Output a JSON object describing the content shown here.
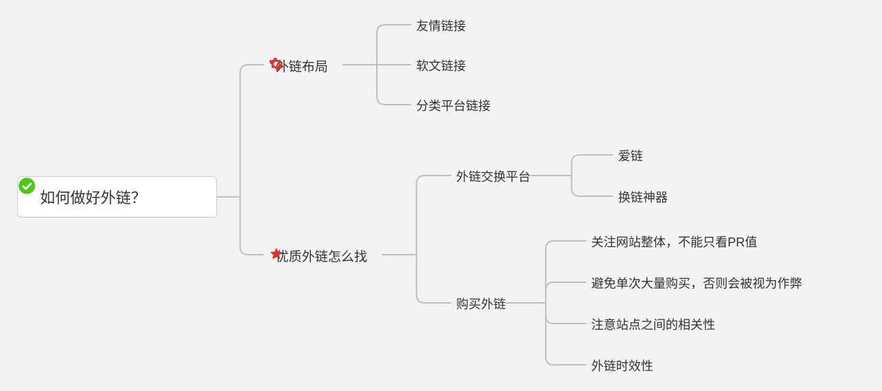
{
  "diagram": {
    "background_color": "#f3f3f3",
    "text_color": "#333333",
    "line_color": "#bfbfbf",
    "line_width": 2,
    "corner_radius": 12,
    "font_size_root": 22,
    "font_size_branch": 19,
    "font_size_leaf": 18,
    "root": {
      "label": "如何做好外链？",
      "box_bg": "#ffffff",
      "box_border": "#cccccc",
      "icon_color": "#52c41a"
    },
    "branches": [
      {
        "id": "layout",
        "label": "外链布局",
        "icon": "gear",
        "icon_color": "#d7342e",
        "children": [
          {
            "label": "友情链接"
          },
          {
            "label": "软文链接"
          },
          {
            "label": "分类平台链接"
          }
        ]
      },
      {
        "id": "find",
        "label": "优质外链怎么找",
        "icon": "star",
        "icon_color": "#d7342e",
        "children": [
          {
            "label": "外链交换平台",
            "children": [
              {
                "label": "爱链"
              },
              {
                "label": "换链神器"
              }
            ]
          },
          {
            "label": "购买外链",
            "children": [
              {
                "label": "关注网站整体，不能只看PR值"
              },
              {
                "label": "避免单次大量购买，否则会被视为作弊"
              },
              {
                "label": "注意站点之间的相关性"
              },
              {
                "label": "外链时效性"
              }
            ]
          }
        ]
      }
    ]
  }
}
